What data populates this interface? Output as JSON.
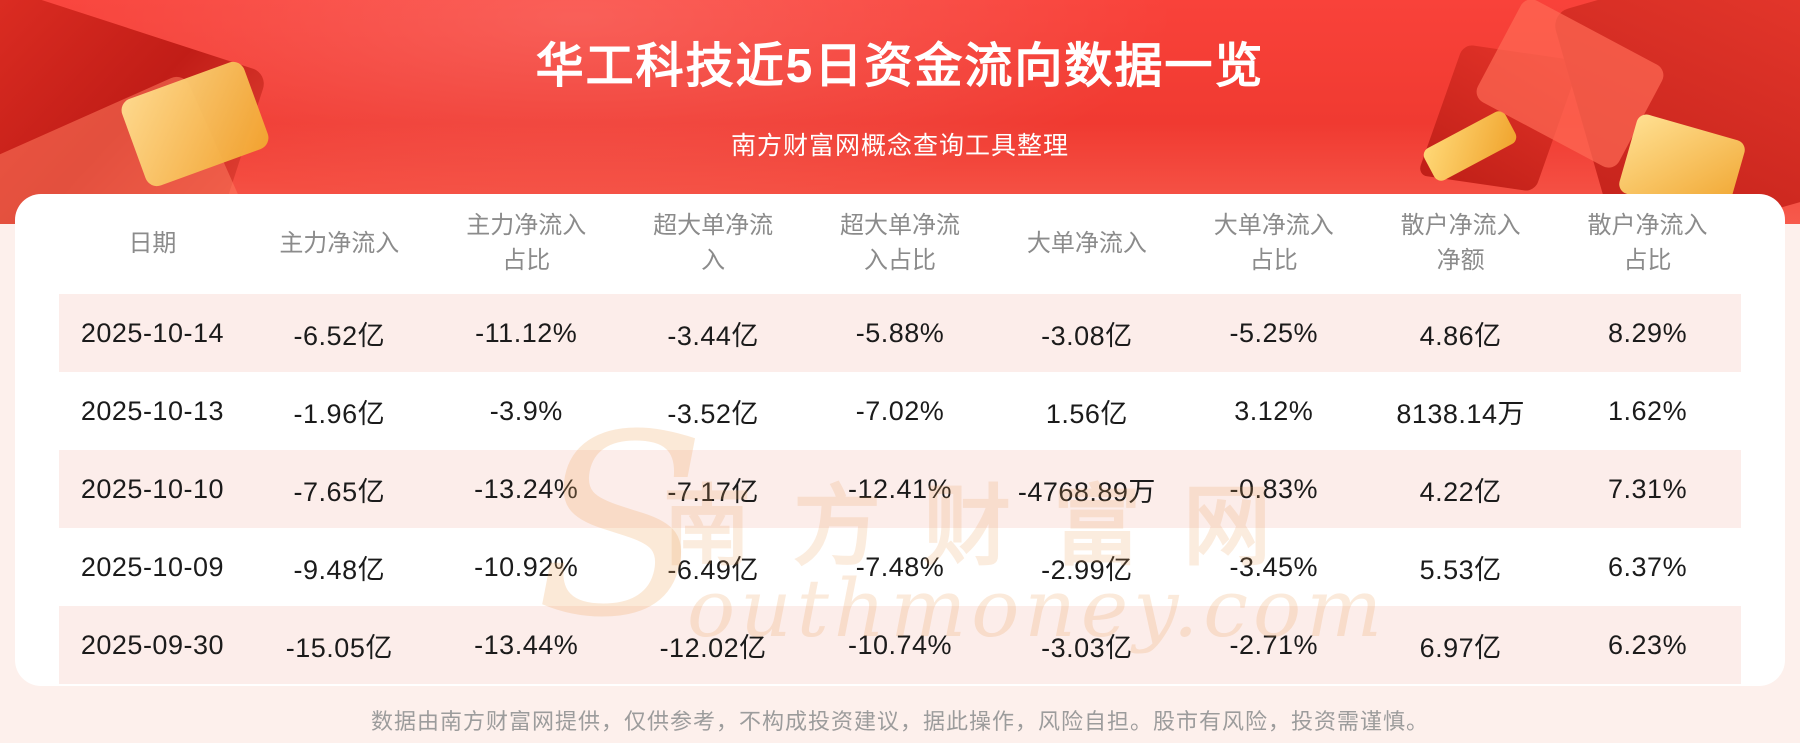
{
  "banner": {
    "title": "华工科技近5日资金流向数据一览",
    "subtitle": "南方财富网概念查询工具整理"
  },
  "watermark": {
    "initial": "S",
    "cn": "南方财富网",
    "en": "outhmoney.com"
  },
  "footer": {
    "text": "数据由南方财富网提供，仅供参考，不构成投资建议，据此操作，风险自担。股市有风险，投资需谨慎。"
  },
  "colors": {
    "banner_red": "#f23a31",
    "page_bg": "#fdf0ec",
    "row_stripe": "#fcedea",
    "header_text": "#8b8b8b",
    "cell_text": "#1b1b1b",
    "title_text": "#ffffff",
    "gold_accent": "#f2a62e"
  },
  "chart_data": {
    "type": "table",
    "title": "华工科技近5日资金流向数据一览",
    "columns": [
      "日期",
      "主力净流入",
      "主力净流入占比",
      "超大单净流入",
      "超大单净流入占比",
      "大单净流入",
      "大单净流入占比",
      "散户净流入净额",
      "散户净流入占比"
    ],
    "rows": [
      [
        "2025-10-14",
        "-6.52亿",
        "-11.12%",
        "-3.44亿",
        "-5.88%",
        "-3.08亿",
        "-5.25%",
        "4.86亿",
        "8.29%"
      ],
      [
        "2025-10-13",
        "-1.96亿",
        "-3.9%",
        "-3.52亿",
        "-7.02%",
        "1.56亿",
        "3.12%",
        "8138.14万",
        "1.62%"
      ],
      [
        "2025-10-10",
        "-7.65亿",
        "-13.24%",
        "-7.17亿",
        "-12.41%",
        "-4768.89万",
        "-0.83%",
        "4.22亿",
        "7.31%"
      ],
      [
        "2025-10-09",
        "-9.48亿",
        "-10.92%",
        "-6.49亿",
        "-7.48%",
        "-2.99亿",
        "-3.45%",
        "5.53亿",
        "6.37%"
      ],
      [
        "2025-09-30",
        "-15.05亿",
        "-13.44%",
        "-12.02亿",
        "-10.74%",
        "-3.03亿",
        "-2.71%",
        "6.97亿",
        "6.23%"
      ]
    ]
  }
}
